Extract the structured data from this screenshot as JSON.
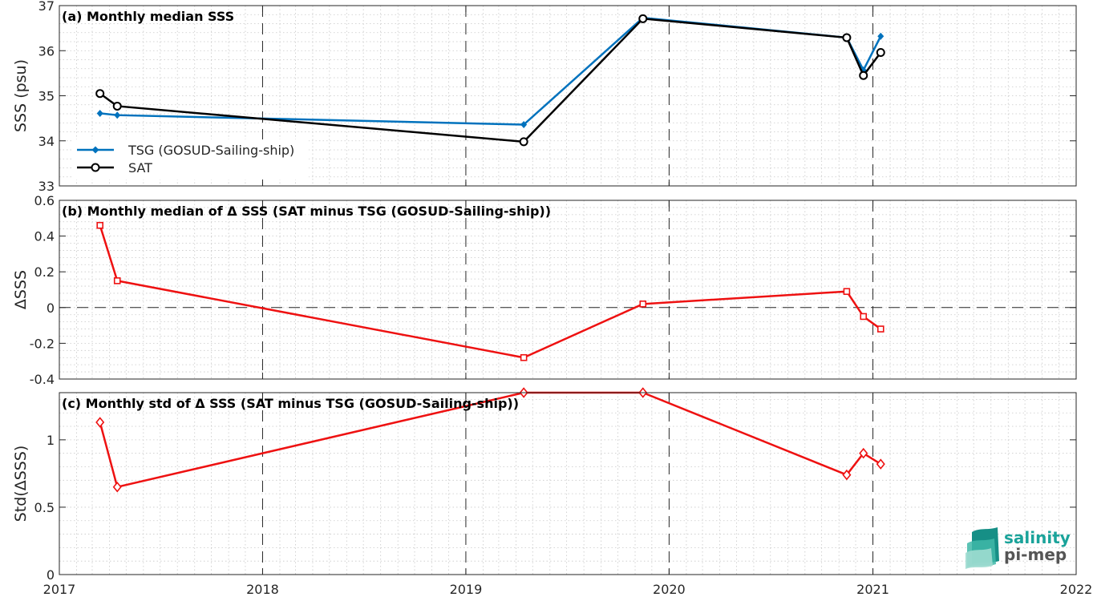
{
  "colors": {
    "tsg": "#0072bd",
    "sat": "#000000",
    "delta": "#ee1111",
    "grid": "#c8c8c8",
    "frame": "#262626",
    "logo": "#1aa39a"
  },
  "logo": {
    "line1": "salinity",
    "line2": "pi-mep"
  },
  "chart_data": [
    {
      "type": "line",
      "title": "(a) Monthly median SSS",
      "xlabel": "",
      "ylabel": "SSS (psu)",
      "xlim": [
        "2017-01-01",
        "2022-01-01"
      ],
      "xticks": [
        "2017",
        "2018",
        "2019",
        "2020",
        "2021",
        "2022"
      ],
      "ylim": [
        33,
        37
      ],
      "yticks": [
        "33",
        "34",
        "35",
        "36",
        "37"
      ],
      "grid": true,
      "legend": "bottom-left",
      "series": [
        {
          "name": "TSG (GOSUD-Sailing-ship)",
          "marker": "diamond-filled",
          "color_key": "tsg",
          "x": [
            "2017-03-15",
            "2017-04-15",
            "2019-04-15",
            "2019-11-15",
            "2020-11-15",
            "2020-12-15",
            "2021-01-15"
          ],
          "y": [
            34.61,
            34.57,
            34.36,
            36.73,
            36.29,
            35.57,
            36.32
          ]
        },
        {
          "name": "SAT",
          "marker": "circle-open",
          "color_key": "sat",
          "x": [
            "2017-03-15",
            "2017-04-15",
            "2019-04-15",
            "2019-11-15",
            "2020-11-15",
            "2020-12-15",
            "2021-01-15"
          ],
          "y": [
            35.05,
            34.77,
            33.98,
            36.71,
            36.29,
            35.45,
            35.96
          ]
        }
      ]
    },
    {
      "type": "line",
      "title": "(b) Monthly median of Δ SSS (SAT minus TSG (GOSUD-Sailing-ship))",
      "xlabel": "",
      "ylabel": "ΔSSS",
      "xlim": [
        "2017-01-01",
        "2022-01-01"
      ],
      "ylim": [
        -0.4,
        0.6
      ],
      "yticks": [
        "-0.4",
        "-0.2",
        "0",
        "0.2",
        "0.4",
        "0.6"
      ],
      "grid": true,
      "zero_line": true,
      "series": [
        {
          "marker": "square-open",
          "color_key": "delta",
          "x": [
            "2017-03-15",
            "2017-04-15",
            "2019-04-15",
            "2019-11-15",
            "2020-11-15",
            "2020-12-15",
            "2021-01-15"
          ],
          "y": [
            0.46,
            0.15,
            -0.28,
            0.02,
            0.09,
            -0.05,
            -0.12
          ]
        }
      ]
    },
    {
      "type": "line",
      "title": "(c) Monthly std of Δ SSS (SAT minus TSG (GOSUD-Sailing-ship))",
      "xlabel": "",
      "ylabel": "Std(ΔSSS)",
      "xlim": [
        "2017-01-01",
        "2022-01-01"
      ],
      "xticks": [
        "2017",
        "2018",
        "2019",
        "2020",
        "2021",
        "2022"
      ],
      "ylim": [
        0,
        1.35
      ],
      "yticks": [
        "0",
        "0.5",
        "1"
      ],
      "grid": true,
      "series": [
        {
          "marker": "diamond-open",
          "color_key": "delta",
          "x": [
            "2017-03-15",
            "2017-04-15",
            "2019-04-15",
            "2019-11-15",
            "2020-11-15",
            "2020-12-15",
            "2021-01-15"
          ],
          "y": [
            1.13,
            0.65,
            1.35,
            1.35,
            0.74,
            0.9,
            0.82
          ]
        }
      ]
    }
  ]
}
